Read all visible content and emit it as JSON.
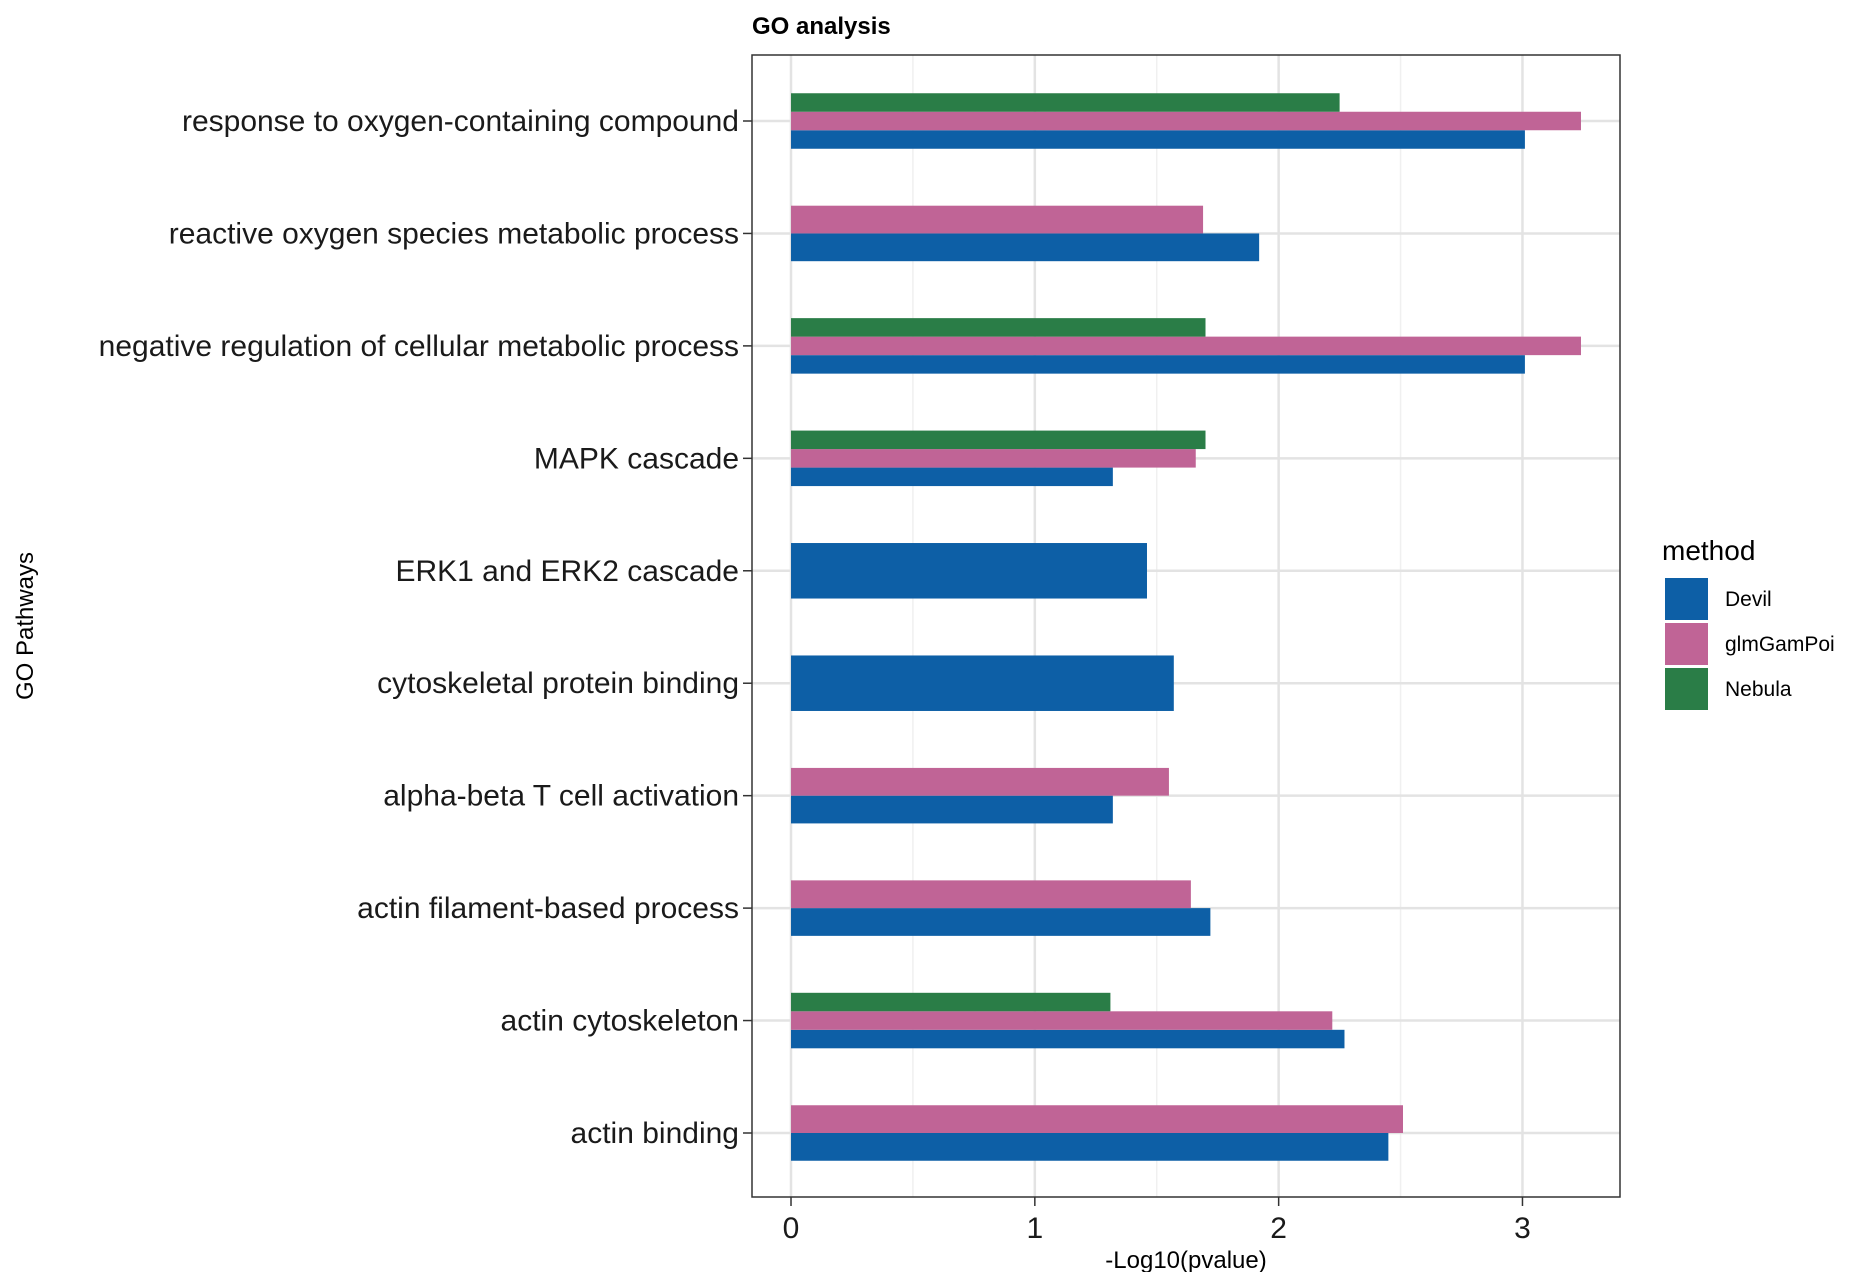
{
  "chart_data": {
    "type": "bar",
    "orientation": "horizontal",
    "title": "GO analysis",
    "xlabel": "-Log10(pvalue)",
    "ylabel": "GO Pathways",
    "xlim": [
      -0.16,
      3.4
    ],
    "x_ticks": [
      0,
      1,
      2,
      3
    ],
    "grid": true,
    "legend_position": "right",
    "legend_title": "method",
    "categories": [
      "response to oxygen-containing compound",
      "reactive oxygen species metabolic process",
      "negative regulation of cellular metabolic process",
      "MAPK cascade",
      "ERK1 and ERK2 cascade",
      "cytoskeletal protein binding",
      "alpha-beta T cell activation",
      "actin filament-based process",
      "actin cytoskeleton",
      "actin binding"
    ],
    "series": [
      {
        "name": "Devil",
        "color": "#0d5fa6",
        "values": [
          3.01,
          1.92,
          3.01,
          1.32,
          1.46,
          1.57,
          1.32,
          1.72,
          2.27,
          2.45
        ]
      },
      {
        "name": "glmGamPoi",
        "color": "#c06496",
        "values": [
          3.24,
          1.69,
          3.24,
          1.66,
          null,
          null,
          1.55,
          1.64,
          2.22,
          2.51
        ]
      },
      {
        "name": "Nebula",
        "color": "#2a7d47",
        "values": [
          2.25,
          null,
          1.7,
          1.7,
          null,
          null,
          null,
          null,
          1.31,
          null
        ]
      }
    ]
  }
}
